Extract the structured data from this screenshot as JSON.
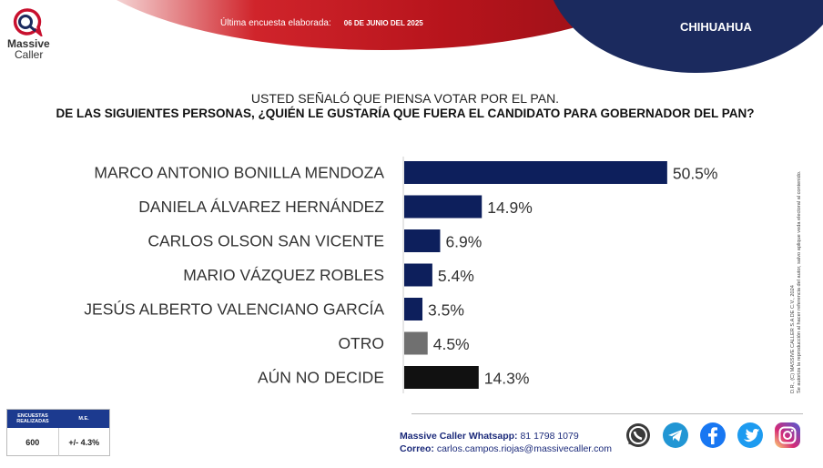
{
  "header": {
    "survey_label": "Última encuesta elaborada:",
    "survey_date": "06 DE JUNIO DEL 2025",
    "state": "CHIHUAHUA"
  },
  "brand": {
    "line1": "Massive",
    "line2": "Caller"
  },
  "question": {
    "line1": "USTED SEÑALÓ QUE PIENSA VOTAR POR EL PAN.",
    "line2": "DE LAS SIGUIENTES PERSONAS, ¿QUIÉN LE GUSTARÍA QUE FUERA EL CANDIDATO PARA GOBERNADOR DEL PAN?"
  },
  "chart_data": {
    "type": "bar",
    "orientation": "horizontal",
    "categories": [
      "MARCO ANTONIO BONILLA MENDOZA",
      "DANIELA ÁLVAREZ HERNÁNDEZ",
      "CARLOS OLSON SAN VICENTE",
      "MARIO VÁZQUEZ ROBLES",
      "JESÚS ALBERTO VALENCIANO GARCÍA",
      "OTRO",
      "AÚN NO DECIDE"
    ],
    "values": [
      50.5,
      14.9,
      6.9,
      5.4,
      3.5,
      4.5,
      14.3
    ],
    "value_labels": [
      "50.5%",
      "14.9%",
      "6.9%",
      "5.4%",
      "3.5%",
      "4.5%",
      "14.3%"
    ],
    "colors": [
      "#0d1f5c",
      "#0d1f5c",
      "#0d1f5c",
      "#0d1f5c",
      "#0d1f5c",
      "#707070",
      "#111111"
    ],
    "title": "",
    "xlabel": "",
    "ylabel": "",
    "grid": false
  },
  "side_note": {
    "line1": "D.R., (C) MASSIVE CALLER S.A DE C.V., 2024",
    "line2": "Se autoriza la reproducción al hacer referencia del autor, salvo aplique veda electoral al contenido."
  },
  "stats": {
    "col1_header": "ENCUESTAS REALIZADAS",
    "col2_header": "M.E.",
    "col1_value": "600",
    "col2_value": "+/- 4.3%"
  },
  "contact": {
    "whatsapp_label": "Massive Caller Whatsapp:",
    "whatsapp_number": "81 1798 1079",
    "email_label": "Correo:",
    "email_value": "carlos.campos.riojas@massivecaller.com"
  },
  "social_icons": [
    "whatsapp-icon",
    "telegram-icon",
    "facebook-icon",
    "twitter-icon",
    "instagram-icon"
  ]
}
